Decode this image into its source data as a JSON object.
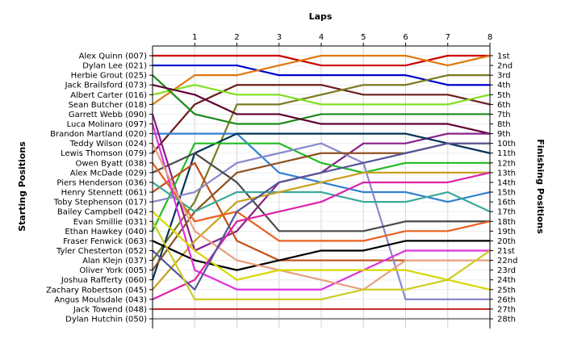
{
  "chart_data": {
    "type": "line",
    "title": "",
    "xlabel": "Laps",
    "ylabel_left": "Starting Positions",
    "ylabel_right": "Finishing Positions",
    "x": [
      0,
      1,
      2,
      3,
      4,
      5,
      6,
      7,
      8
    ],
    "x_tick_labels": [
      "1",
      "2",
      "3",
      "4",
      "5",
      "6",
      "7",
      "8"
    ],
    "position_range": [
      1,
      28
    ],
    "grid": true,
    "start_labels": [
      "Alex Quinn (007)",
      "Dylan Lee (021)",
      "Herbie Grout (025)",
      "Jack Brailsford (073)",
      "Albert Carter (016)",
      "Sean Butcher (018)",
      "Garrett Webb (090)",
      "Luca Molinaro (097)",
      "Brandon Martland (020)",
      "Teddy Wilson (024)",
      "Lewis Thomson (079)",
      "Owen Byatt (038)",
      "Alex McDade (029)",
      "Piers Henderson (036)",
      "Henry Stennett (061)",
      "Toby Stephenson (017)",
      "Bailey Campbell (042)",
      "Evan Smillie (031)",
      "Ethan Hawkey (040)",
      "Fraser Fenwick (063)",
      "Tyler Chesterton (052)",
      "Alan Klejn (037)",
      "Oliver York (005)",
      "Joshua Rafferty (060)",
      "Zachary Robertson (045)",
      "Angus Moulsdale (043)",
      "Jack Towend (048)",
      "Dylan Hutchin (050)"
    ],
    "finish_labels": [
      "1st",
      "2nd",
      "3rd",
      "4th",
      "5th",
      "6th",
      "7th",
      "8th",
      "9th",
      "10th",
      "11th",
      "12th",
      "13th",
      "14th",
      "15th",
      "16th",
      "17th",
      "18th",
      "19th",
      "20th",
      "21st",
      "22nd",
      "23rd",
      "24th",
      "25th",
      "26th",
      "27th",
      "28th"
    ],
    "series": [
      {
        "color": "#cc0000",
        "values": [
          1,
          1,
          1,
          1,
          2,
          2,
          2,
          1,
          1
        ]
      },
      {
        "color": "#0000cc",
        "values": [
          2,
          2,
          2,
          3,
          3,
          3,
          3,
          4,
          4
        ]
      },
      {
        "color": "#e07810",
        "values": [
          6,
          3,
          3,
          2,
          1,
          1,
          1,
          2,
          1
        ]
      },
      {
        "color": "#6b1f1f",
        "values": [
          11,
          6,
          4,
          4,
          4,
          5,
          5,
          5,
          6
        ]
      },
      {
        "color": "#7a7a20",
        "values": [
          22,
          16,
          6,
          6,
          5,
          4,
          4,
          3,
          3
        ]
      },
      {
        "color": "#80e020",
        "values": [
          5,
          4,
          5,
          5,
          6,
          6,
          6,
          6,
          5
        ]
      },
      {
        "color": "#1a8a1a",
        "values": [
          3,
          7,
          8,
          8,
          7,
          7,
          7,
          7,
          7
        ]
      },
      {
        "color": "#600030",
        "values": [
          4,
          5,
          7,
          7,
          8,
          8,
          8,
          8,
          9
        ]
      },
      {
        "color": "#3080d0",
        "values": [
          9,
          9,
          9,
          13,
          14,
          15,
          15,
          16,
          15
        ]
      },
      {
        "color": "#882088",
        "values": [
          7,
          21,
          19,
          14,
          13,
          10,
          10,
          9,
          9
        ]
      },
      {
        "color": "#003355",
        "values": [
          24,
          11,
          9,
          9,
          9,
          9,
          9,
          10,
          11
        ]
      },
      {
        "color": "#22bb22",
        "values": [
          19,
          10,
          10,
          10,
          12,
          13,
          12,
          12,
          12
        ]
      },
      {
        "color": "#c05018",
        "values": [
          15,
          12,
          20,
          22,
          22,
          22,
          22,
          22,
          22
        ]
      },
      {
        "color": "#8888cc",
        "values": [
          16,
          15,
          12,
          11,
          10,
          12,
          26,
          26,
          26
        ]
      },
      {
        "color": "#8f5020",
        "values": [
          23,
          17,
          13,
          12,
          11,
          11,
          11,
          10,
          10
        ]
      },
      {
        "color": "#4a4a4a",
        "values": [
          13,
          11,
          14,
          19,
          19,
          19,
          18,
          18,
          18
        ]
      },
      {
        "color": "#3aaa99",
        "values": [
          14,
          17,
          15,
          15,
          15,
          16,
          16,
          15,
          17
        ]
      },
      {
        "color": "#c8a020",
        "values": [
          25,
          20,
          16,
          15,
          14,
          13,
          13,
          13,
          13
        ]
      },
      {
        "color": "#e86020",
        "values": [
          12,
          18,
          17,
          20,
          20,
          20,
          19,
          19,
          18
        ]
      },
      {
        "color": "#000000",
        "values": [
          20,
          22,
          23,
          22,
          21,
          21,
          20,
          20,
          20
        ]
      },
      {
        "color": "#dd33dd",
        "values": [
          8,
          23,
          25,
          25,
          25,
          23,
          21,
          21,
          21
        ]
      },
      {
        "color": "#e8a080",
        "values": [
          10,
          19,
          22,
          23,
          24,
          25,
          22,
          22,
          22
        ]
      },
      {
        "color": "#d8d800",
        "values": [
          17,
          21,
          24,
          23,
          23,
          23,
          23,
          24,
          25
        ]
      },
      {
        "color": "#dd22aa",
        "values": [
          26,
          24,
          18,
          17,
          16,
          14,
          14,
          14,
          13
        ]
      },
      {
        "color": "#555599",
        "values": [
          21,
          25,
          17,
          14,
          13,
          12,
          11,
          10,
          10
        ]
      },
      {
        "color": "#cccc22",
        "values": [
          18,
          26,
          26,
          26,
          26,
          25,
          25,
          24,
          21
        ]
      },
      {
        "color": "#c83030",
        "values": [
          27,
          27,
          27,
          27,
          27,
          27,
          27,
          27,
          27
        ]
      },
      {
        "color": "#999999",
        "values": [
          28,
          28,
          28,
          28,
          28,
          28,
          28,
          28,
          28
        ]
      }
    ]
  }
}
